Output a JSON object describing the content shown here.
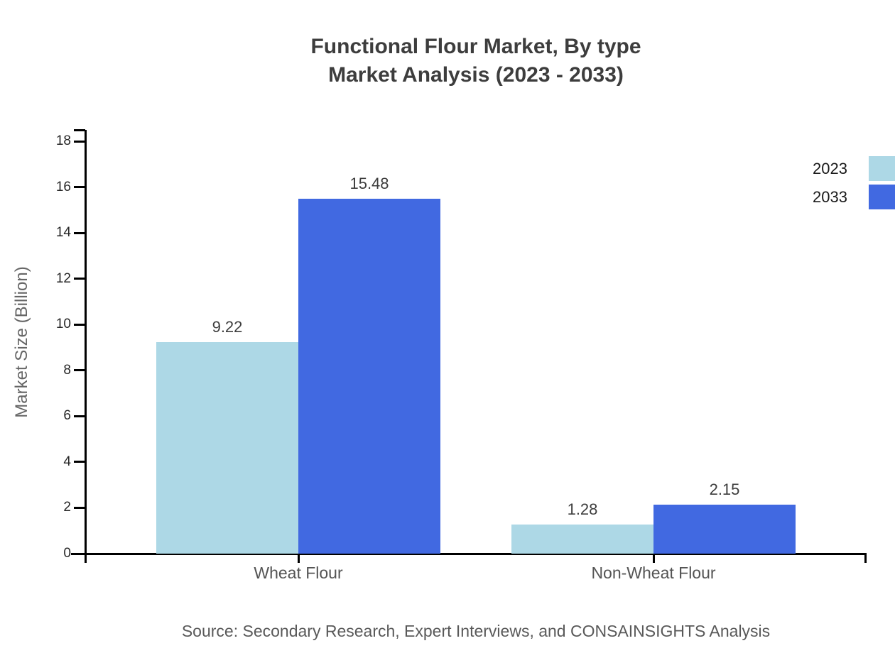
{
  "title": {
    "line1": "Functional Flour Market, By type",
    "line2": "Market Analysis (2023 - 2033)"
  },
  "source": "Source: Secondary Research, Expert Interviews, and CONSAINSIGHTS Analysis",
  "colors": {
    "series_2023": "#ADD8E6",
    "series_2033": "#4169E1",
    "axis": "#000000",
    "title_text": "#3d3d3d",
    "muted_text": "#595959"
  },
  "chart_data": {
    "type": "bar",
    "categories": [
      "Wheat Flour",
      "Non-Wheat Flour"
    ],
    "series": [
      {
        "name": "2023",
        "color": "#ADD8E6",
        "values": [
          9.22,
          1.28
        ]
      },
      {
        "name": "2033",
        "color": "#4169E1",
        "values": [
          15.48,
          2.15
        ]
      }
    ],
    "value_labels": [
      "9.22",
      "15.48",
      "1.28",
      "2.15"
    ],
    "title": "Functional Flour Market, By type Market Analysis (2023 - 2033)",
    "xlabel": "",
    "ylabel": "Market Size (Billion)",
    "ylim": [
      0,
      18
    ],
    "yticks": [
      0,
      2,
      4,
      6,
      8,
      10,
      12,
      14,
      16,
      18
    ],
    "grid": false,
    "legend_position": "top-right"
  }
}
